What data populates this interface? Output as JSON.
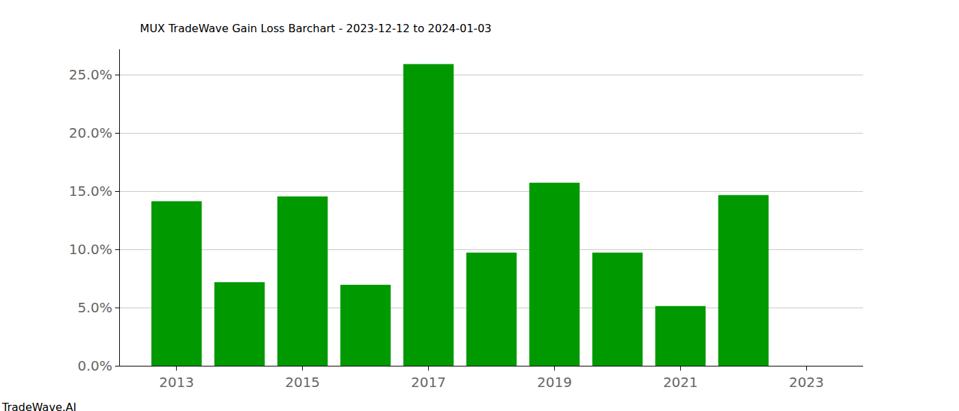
{
  "chart_data": {
    "type": "bar",
    "title": "MUX TradeWave Gain Loss Barchart - 2023-12-12 to 2024-01-03",
    "annotations": [
      "TradeWave.AI"
    ],
    "x": [
      2013,
      2014,
      2015,
      2016,
      2017,
      2018,
      2019,
      2020,
      2021,
      2022
    ],
    "values": [
      14.15,
      7.19,
      14.56,
      6.96,
      25.94,
      9.73,
      15.74,
      9.73,
      5.13,
      14.68
    ],
    "color": "#009900",
    "xlim": [
      2012.1,
      2023.9
    ],
    "xticks": [
      2013,
      2015,
      2017,
      2019,
      2021,
      2023
    ],
    "ylim": [
      0,
      27.2
    ],
    "yticks": [
      {
        "value": 0,
        "label": "0.0%"
      },
      {
        "value": 5,
        "label": "5.0%"
      },
      {
        "value": 10,
        "label": "10.0%"
      },
      {
        "value": 15,
        "label": "15.0%"
      },
      {
        "value": 20,
        "label": "20.0%"
      },
      {
        "value": 25,
        "label": "25.0%"
      }
    ],
    "grid": true
  }
}
